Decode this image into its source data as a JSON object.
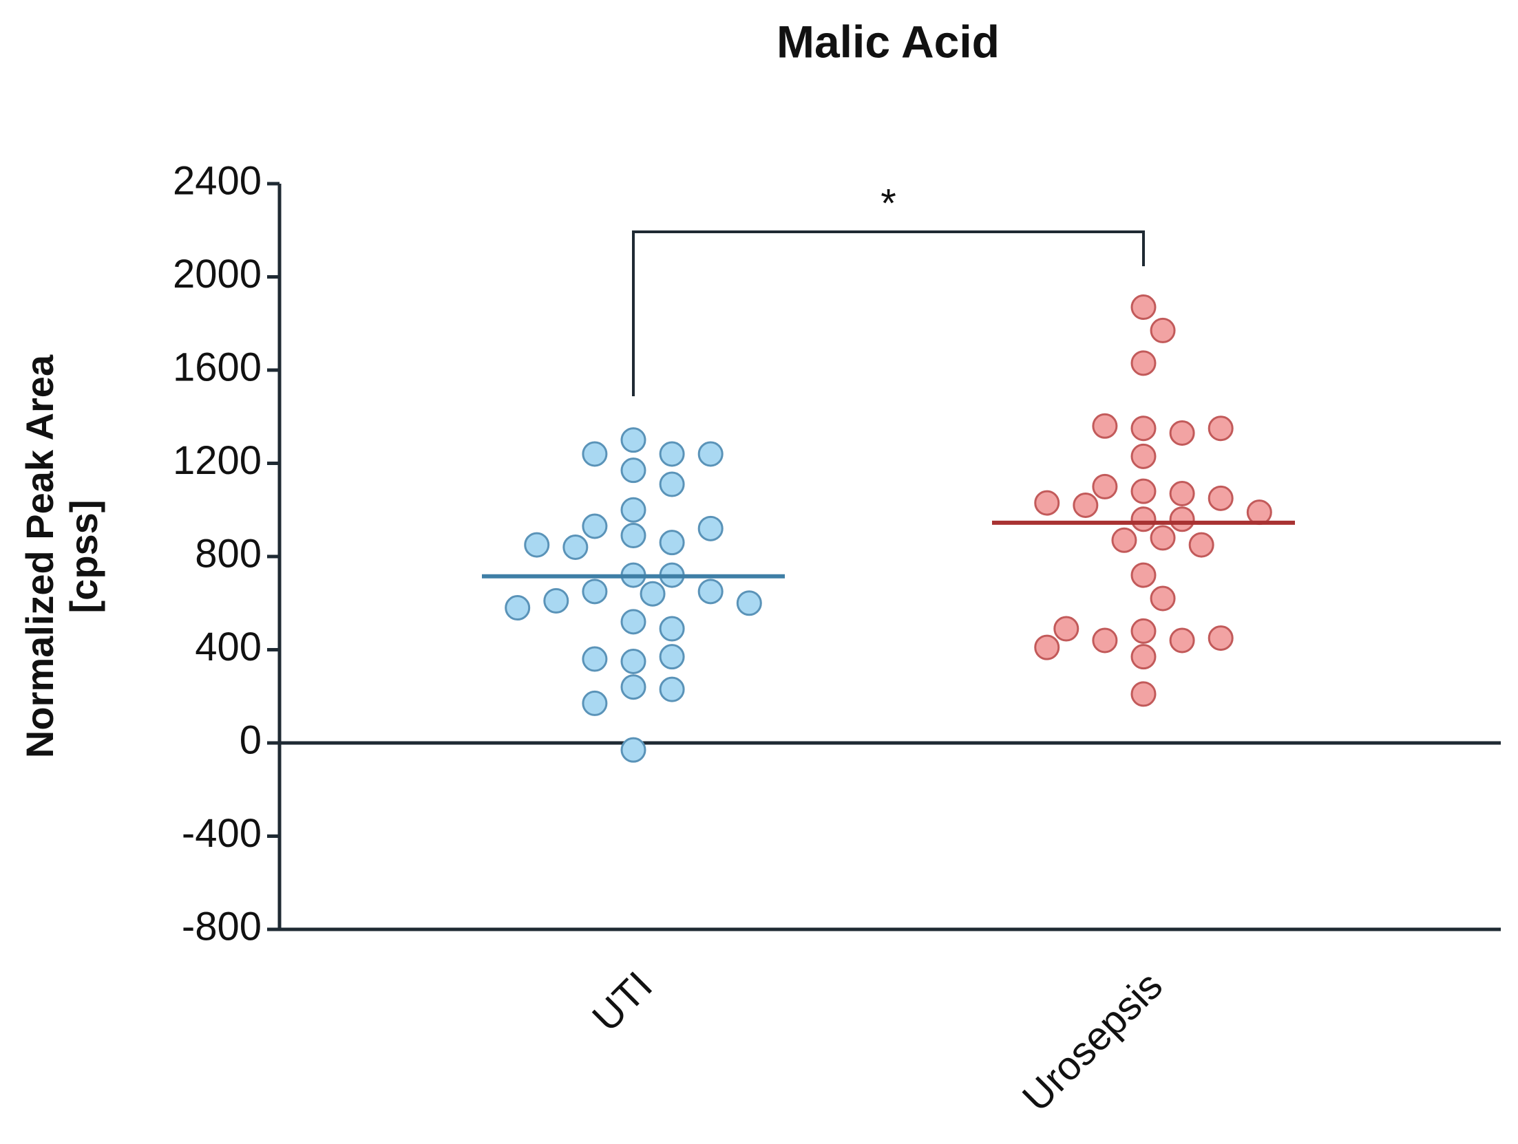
{
  "chart_data": {
    "type": "strip",
    "title": "Malic Acid",
    "y_label": [
      "Normalized Peak Area",
      "[cpss]"
    ],
    "categories": [
      "UTI",
      "Urosepsis"
    ],
    "series": [
      {
        "name": "UTI",
        "color": "#a9d8f2",
        "edge_color": "#5a93b8",
        "mean_color": "#3f7fa6",
        "mean": 715,
        "values": [
          1300,
          1240,
          1170,
          1110,
          1000,
          1240,
          1240,
          890,
          860,
          930,
          920,
          840,
          850,
          720,
          720,
          650,
          650,
          640,
          610,
          600,
          580,
          520,
          490,
          350,
          370,
          360,
          240,
          230,
          170,
          -30
        ]
      },
      {
        "name": "Urosepsis",
        "color": "#f2a3a3",
        "edge_color": "#c25a5a",
        "mean_color": "#a83232",
        "mean": 945,
        "values": [
          1870,
          1770,
          1630,
          1350,
          1330,
          1360,
          1350,
          1230,
          1080,
          1070,
          1100,
          1050,
          1020,
          1030,
          960,
          990,
          960,
          880,
          870,
          850,
          720,
          620,
          480,
          440,
          440,
          450,
          490,
          410,
          370,
          210
        ]
      }
    ],
    "significance": {
      "label": "*",
      "from": "UTI",
      "to": "Urosepsis"
    },
    "ylim": [
      -800,
      2400
    ],
    "yticks": [
      -800,
      -400,
      0,
      400,
      800,
      1200,
      1600,
      2000,
      2400
    ]
  }
}
